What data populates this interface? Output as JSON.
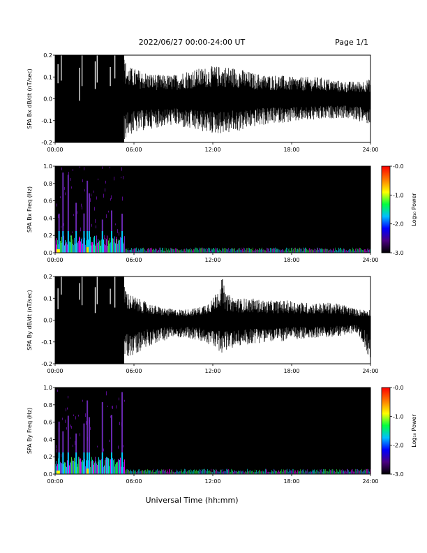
{
  "header": {
    "date_range": "2022/06/27  00:00-24:00 UT",
    "page": "Page 1/1"
  },
  "x_axis": {
    "label": "Universal Time (hh:mm)",
    "ticks": [
      "00:00",
      "06:00",
      "12:00",
      "18:00",
      "24:00"
    ],
    "range_hours": [
      0,
      24
    ]
  },
  "chart_data": [
    {
      "type": "line",
      "ylabel": "SPA Bx dB/dt (nT/sec)",
      "ylim": [
        -0.2,
        0.2
      ],
      "yticks": [
        "0.2",
        "0.1",
        "0.0",
        "-0.1",
        "-0.2"
      ],
      "xlim": [
        0,
        24
      ],
      "envelope": {
        "x_hours": [
          0,
          0.5,
          1,
          1.5,
          2,
          2.5,
          3,
          3.5,
          4,
          4.5,
          5.2,
          5.5,
          6,
          7,
          8,
          9,
          10,
          11,
          12,
          13,
          14,
          15,
          16,
          17,
          18,
          19,
          20,
          21,
          22,
          23,
          24
        ],
        "upper": [
          0.2,
          0.2,
          0.2,
          0.2,
          0.2,
          0.2,
          0.2,
          0.2,
          0.2,
          0.2,
          0.2,
          0.15,
          0.14,
          0.12,
          0.11,
          0.11,
          0.13,
          0.14,
          0.15,
          0.15,
          0.14,
          0.12,
          0.11,
          0.11,
          0.1,
          0.1,
          0.1,
          0.09,
          0.08,
          0.08,
          0.09
        ],
        "lower": [
          -0.2,
          -0.2,
          -0.2,
          -0.2,
          -0.2,
          -0.2,
          -0.2,
          -0.2,
          -0.2,
          -0.2,
          -0.2,
          -0.17,
          -0.16,
          -0.14,
          -0.13,
          -0.12,
          -0.14,
          -0.15,
          -0.16,
          -0.16,
          -0.15,
          -0.13,
          -0.12,
          -0.11,
          -0.11,
          -0.1,
          -0.1,
          -0.09,
          -0.09,
          -0.1,
          -0.12
        ]
      }
    },
    {
      "type": "heatmap",
      "ylabel": "SPA Bx Freq (Hz)",
      "ylim": [
        0,
        1
      ],
      "yticks": [
        "1.0",
        "0.8",
        "0.6",
        "0.4",
        "0.2",
        "0.0"
      ],
      "xlim": [
        0,
        24
      ],
      "colorbar": {
        "label": "Log₁₀ Power",
        "range": [
          -3,
          0
        ],
        "ticks": [
          "-0.0",
          "-1.0",
          "-2.0",
          "-3.0"
        ]
      },
      "background": "#000000",
      "bursts_hours": [
        0.3,
        0.6,
        1.0,
        1.6,
        2.2,
        2.45,
        2.6,
        3.6,
        4.3,
        5.1
      ]
    },
    {
      "type": "line",
      "ylabel": "SPA By dB/dt (nT/sec)",
      "ylim": [
        -0.2,
        0.2
      ],
      "yticks": [
        "0.2",
        "0.1",
        "0.0",
        "-0.1",
        "-0.2"
      ],
      "xlim": [
        0,
        24
      ],
      "envelope": {
        "x_hours": [
          0,
          0.5,
          1,
          1.5,
          2,
          2.5,
          3,
          3.5,
          4,
          4.5,
          5.2,
          5.5,
          6,
          7,
          8,
          9,
          10,
          11,
          12,
          12.7,
          13,
          14,
          15,
          16,
          17,
          18,
          19,
          20,
          21,
          22,
          23,
          24
        ],
        "upper": [
          0.2,
          0.2,
          0.2,
          0.2,
          0.2,
          0.2,
          0.2,
          0.2,
          0.2,
          0.2,
          0.2,
          0.13,
          0.11,
          0.08,
          0.06,
          0.05,
          0.05,
          0.06,
          0.1,
          0.2,
          0.12,
          0.1,
          0.1,
          0.09,
          0.09,
          0.09,
          0.08,
          0.08,
          0.08,
          0.07,
          0.05,
          0.05
        ],
        "lower": [
          -0.2,
          -0.2,
          -0.2,
          -0.2,
          -0.2,
          -0.2,
          -0.2,
          -0.2,
          -0.2,
          -0.2,
          -0.2,
          -0.17,
          -0.16,
          -0.12,
          -0.1,
          -0.08,
          -0.08,
          -0.1,
          -0.12,
          -0.15,
          -0.14,
          -0.12,
          -0.11,
          -0.1,
          -0.1,
          -0.09,
          -0.09,
          -0.08,
          -0.08,
          -0.07,
          -0.06,
          -0.18
        ]
      }
    },
    {
      "type": "heatmap",
      "ylabel": "SPA By Freq (Hz)",
      "ylim": [
        0,
        1
      ],
      "yticks": [
        "1.0",
        "0.8",
        "0.6",
        "0.4",
        "0.2",
        "0.0"
      ],
      "xlim": [
        0,
        24
      ],
      "colorbar": {
        "label": "Log₁₀ Power",
        "range": [
          -3,
          0
        ],
        "ticks": [
          "-0.0",
          "-1.0",
          "-2.0",
          "-3.0"
        ]
      },
      "background": "#000000",
      "bursts_hours": [
        0.3,
        0.6,
        1.0,
        1.6,
        2.2,
        2.45,
        2.6,
        3.6,
        4.3,
        5.1
      ]
    }
  ]
}
